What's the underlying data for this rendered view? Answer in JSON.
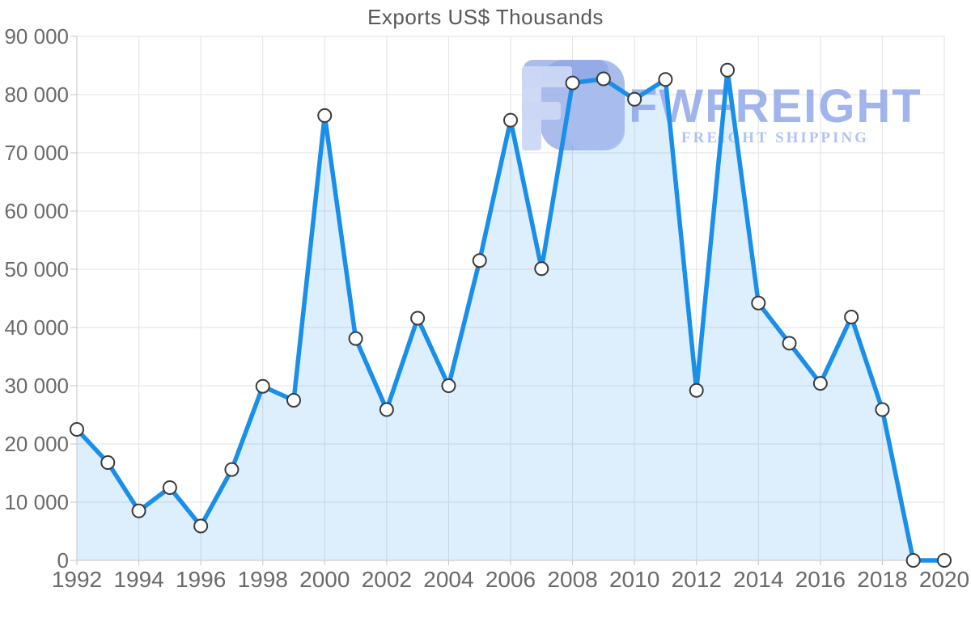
{
  "chart_data": {
    "type": "area",
    "title": "Exports US$ Thousands",
    "xlabel": "",
    "ylabel": "",
    "categories": [
      1992,
      1993,
      1994,
      1995,
      1996,
      1997,
      1998,
      1999,
      2000,
      2001,
      2002,
      2003,
      2004,
      2005,
      2006,
      2007,
      2008,
      2009,
      2010,
      2011,
      2012,
      2013,
      2014,
      2015,
      2016,
      2017,
      2018,
      2019,
      2020
    ],
    "values": [
      22500,
      16800,
      8500,
      12500,
      5900,
      15600,
      29900,
      27500,
      76400,
      38100,
      25900,
      41600,
      30000,
      51500,
      75600,
      50100,
      82000,
      82700,
      79200,
      82600,
      29200,
      84200,
      44200,
      37300,
      30400,
      41800,
      25900,
      0,
      0
    ],
    "series_name": "Exports US$ Thousands",
    "ylim": [
      0,
      90000
    ],
    "ytick_step": 10000,
    "ytick_labels": [
      "0",
      "10 000",
      "20 000",
      "30 000",
      "40 000",
      "50 000",
      "60 000",
      "70 000",
      "80 000",
      "90 000"
    ],
    "xtick_labels": [
      "1992",
      "1994",
      "1996",
      "1998",
      "2000",
      "2002",
      "2004",
      "2006",
      "2008",
      "2010",
      "2012",
      "2014",
      "2016",
      "2018",
      "2020"
    ],
    "xlabel_every": 2,
    "grid": "on",
    "legend": "none",
    "marker": "circle"
  },
  "watermark": {
    "title": "FWFREIGHT",
    "subtitle": "FREIGHT SHIPPING"
  },
  "colors": {
    "line": "#1A8FEA",
    "area_fill": "rgba(26,143,234,0.15)",
    "marker_fill": "#ffffff",
    "marker_stroke": "#3a3a3a",
    "gridline": "#e2e2e2",
    "axis_line": "#c6c6c6",
    "axis_label": "#6a6a6a",
    "title_text": "#595959",
    "watermark_dark": "#8EA5E6",
    "watermark_mid": "#A9BCEF",
    "watermark_light": "#CBD7F4",
    "watermark_text": "#8CA2E8",
    "watermark_subtext": "#A5B9EF"
  }
}
